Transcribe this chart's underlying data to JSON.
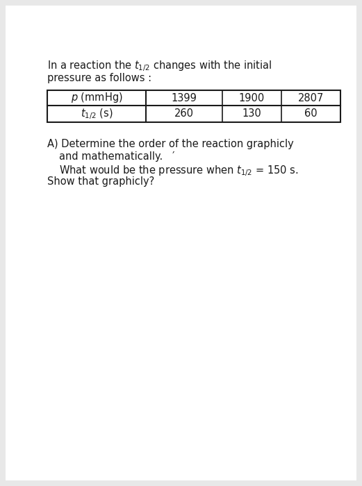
{
  "bg_color": "#e8e8e8",
  "page_color": "#ffffff",
  "text_color": "#1a1a1a",
  "table_border_color": "#1a1a1a",
  "font_size_body": 10.5,
  "line1": "In a reaction the $t_{1/2}$ changes with the initial",
  "line2": "pressure as follows :",
  "p_header": "$p$ (mmHg)",
  "t_header": "$t_{1/2}$ (s)",
  "p_values": [
    "1399",
    "1900",
    "2807"
  ],
  "t_values": [
    "260",
    "130",
    "60"
  ],
  "q1": "A) Determine the order of the reaction graphicly",
  "q2": "and mathematically.   ′",
  "q3": "What would be the pressure when $t_{1/2}$ = 150 s.",
  "q4": "Show that graphicly?"
}
